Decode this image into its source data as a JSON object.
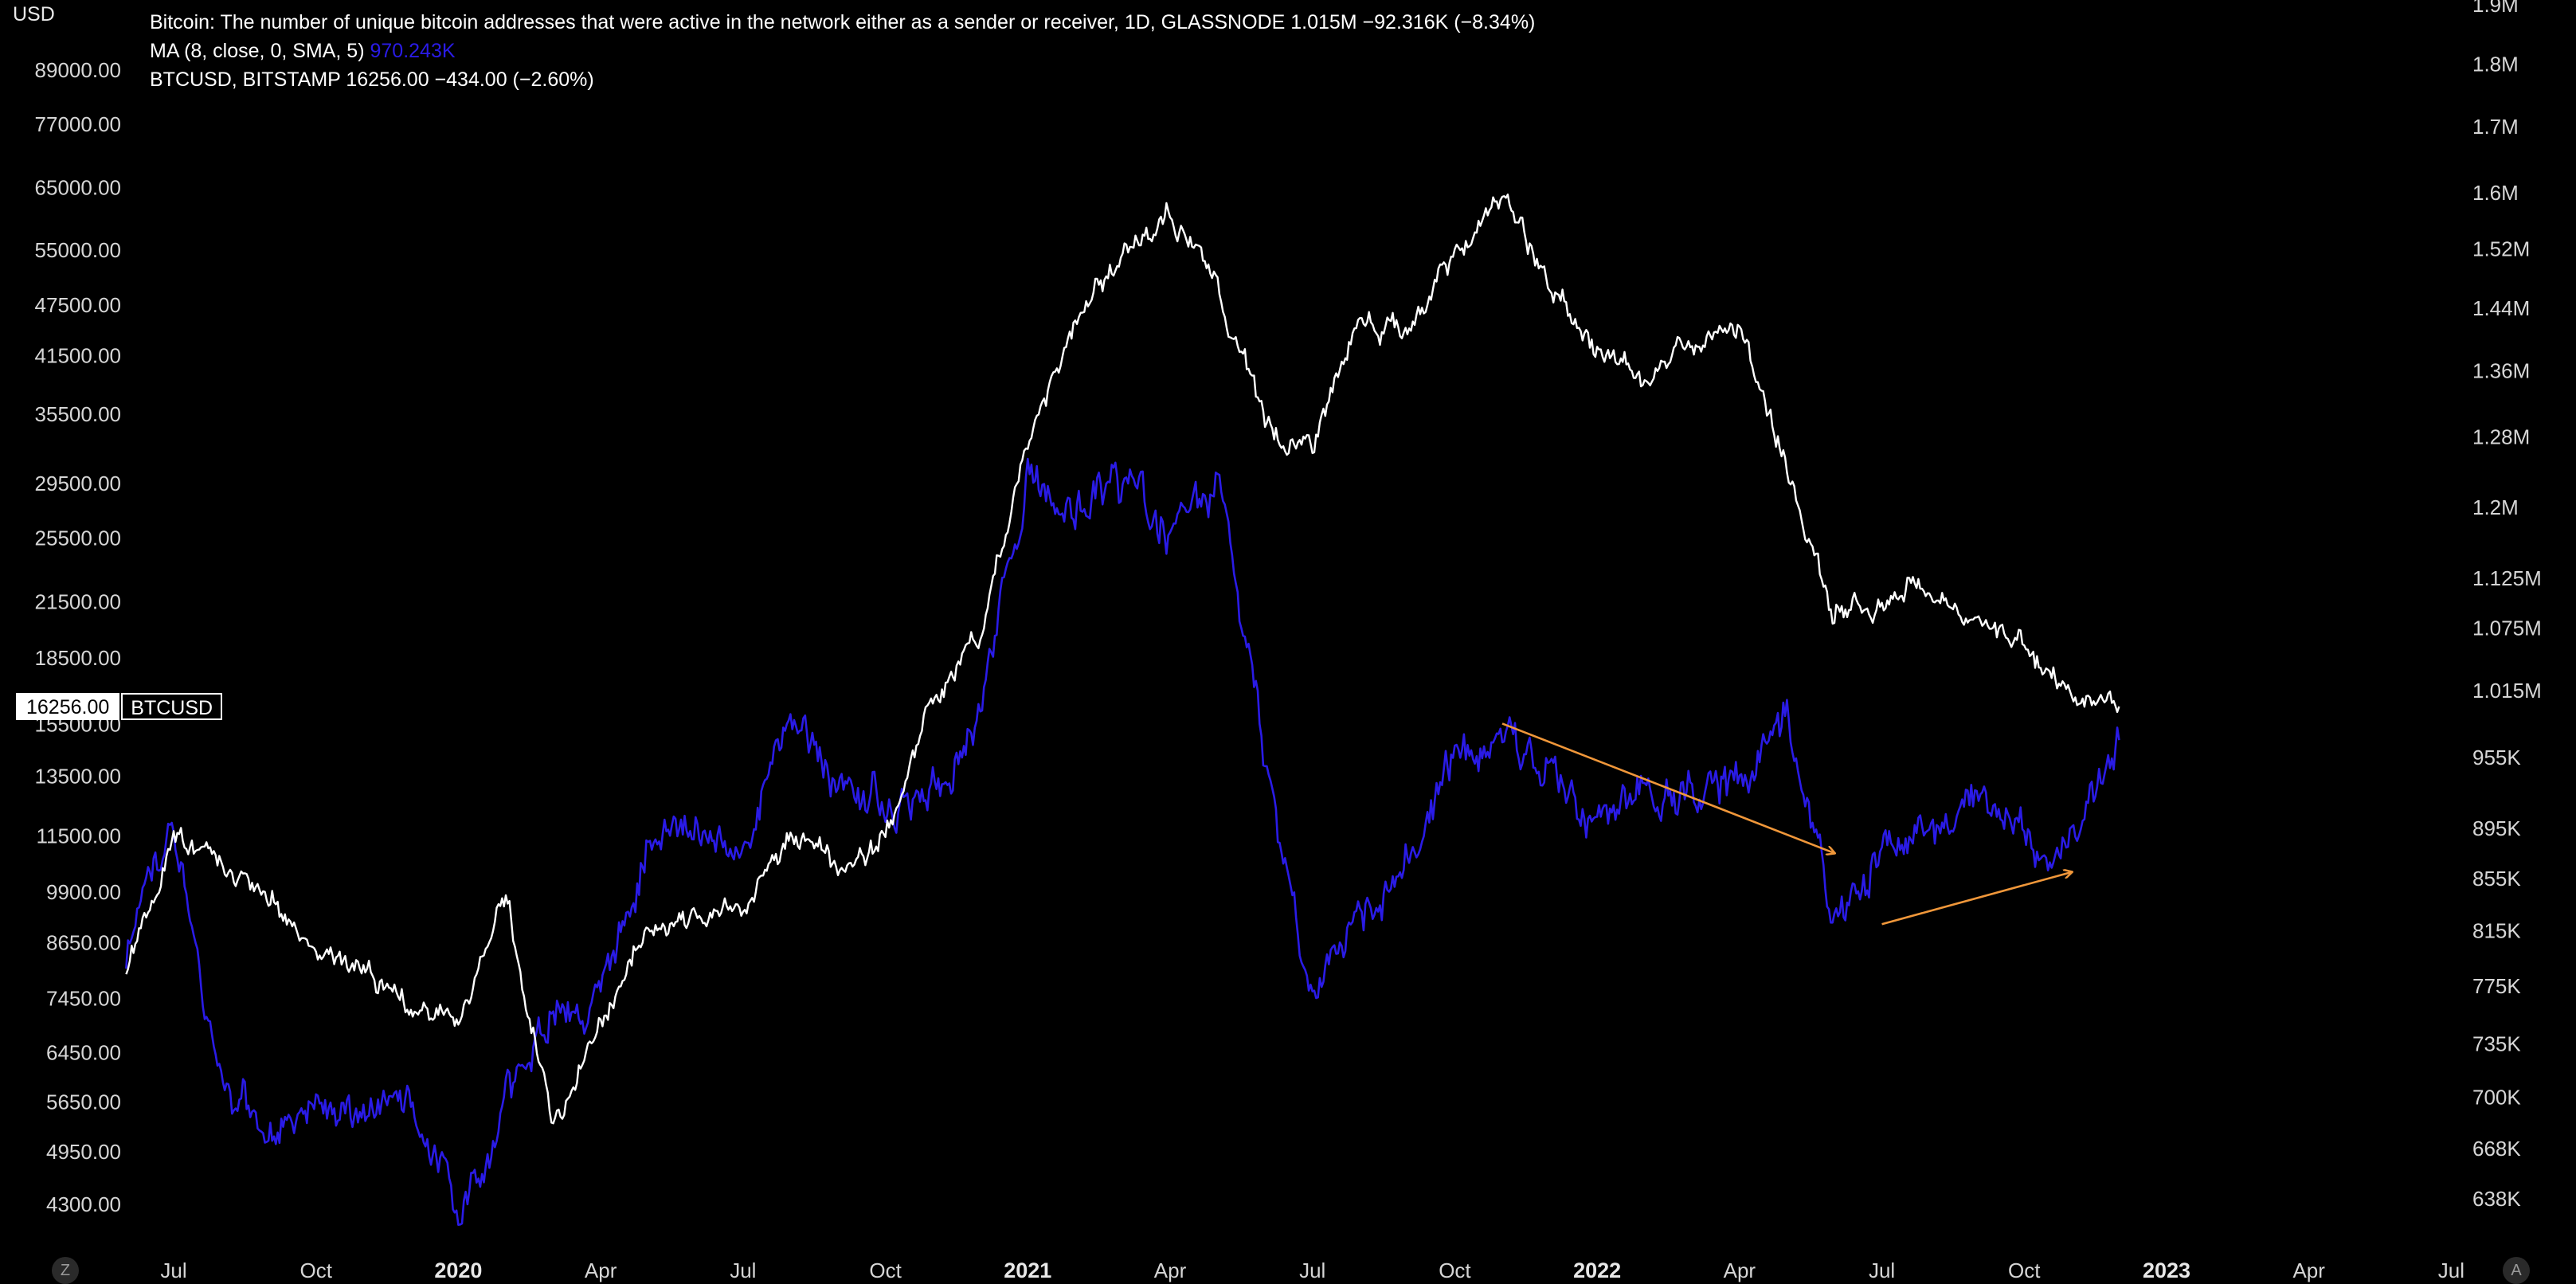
{
  "legend": {
    "line1": "Bitcoin: The number of unique bitcoin addresses that were active in the network either as a sender or receiver, 1D, GLASSNODE  1.015M  −92.316K (−8.34%)",
    "line2_label": "MA (8, close, 0, SMA, 5)",
    "line2_value": "970.243K",
    "line3": "BTCUSD, BITSTAMP  16256.00  −434.00 (−2.60%)"
  },
  "left_axis_unit": "USD",
  "price_tag": {
    "value": "16256.00",
    "symbol": "BTCUSD"
  },
  "corner_left": "Z",
  "corner_right": "A",
  "colors": {
    "price": "#ffffff",
    "addresses": "#2a1be6",
    "arrows": "#f0973a",
    "background": "#000000"
  },
  "chart_data": {
    "type": "line",
    "x_axis": {
      "labels": [
        "Jul",
        "Oct",
        "2020",
        "Apr",
        "Jul",
        "Oct",
        "2021",
        "Apr",
        "Jul",
        "Oct",
        "2022",
        "Apr",
        "Jul",
        "Oct",
        "2023",
        "Apr",
        "Jul"
      ],
      "bold": [
        "2020",
        "2021",
        "2022",
        "2023"
      ]
    },
    "left_axis": {
      "unit": "USD",
      "scale": "log",
      "ticks": [
        "89000.00",
        "77000.00",
        "65000.00",
        "55000.00",
        "47500.00",
        "41500.00",
        "35500.00",
        "29500.00",
        "25500.00",
        "21500.00",
        "18500.00",
        "15500.00",
        "13500.00",
        "11500.00",
        "9900.00",
        "8650.00",
        "7450.00",
        "6450.00",
        "5650.00",
        "4950.00",
        "4300.00"
      ]
    },
    "right_axis": {
      "scale": "log",
      "ticks": [
        "1.9M",
        "1.8M",
        "1.7M",
        "1.6M",
        "1.52M",
        "1.44M",
        "1.36M",
        "1.28M",
        "1.2M",
        "1.125M",
        "1.075M",
        "1.015M",
        "955K",
        "895K",
        "855K",
        "815K",
        "775K",
        "735K",
        "700K",
        "668K",
        "638K"
      ]
    },
    "series": [
      {
        "name": "BTCUSD, BITSTAMP",
        "axis": "left",
        "x": [
          "2019-06",
          "2019-07",
          "2019-08",
          "2019-09",
          "2019-10",
          "2019-11",
          "2019-12",
          "2020-01",
          "2020-02",
          "2020-03",
          "2020-04",
          "2020-05",
          "2020-06",
          "2020-07",
          "2020-08",
          "2020-09",
          "2020-10",
          "2020-11",
          "2020-12",
          "2021-01",
          "2021-02",
          "2021-03",
          "2021-04",
          "2021-05",
          "2021-06",
          "2021-07",
          "2021-08",
          "2021-09",
          "2021-10",
          "2021-11",
          "2021-12",
          "2022-01",
          "2022-02",
          "2022-03",
          "2022-04",
          "2022-05",
          "2022-06",
          "2022-07",
          "2022-08",
          "2022-09",
          "2022-10",
          "2022-11",
          "2022-12"
        ],
        "values": [
          8000,
          11500,
          10500,
          10000,
          8500,
          8100,
          7300,
          7000,
          9700,
          5200,
          7000,
          9000,
          9300,
          9500,
          11500,
          10700,
          11500,
          16500,
          19500,
          33000,
          45000,
          55000,
          60000,
          50000,
          34500,
          32000,
          46000,
          44000,
          55000,
          64000,
          50000,
          42000,
          39000,
          43000,
          45000,
          30500,
          21000,
          21500,
          22500,
          20000,
          19500,
          17000,
          16256
        ]
      },
      {
        "name": "MA (8, close, 0, SMA, 5)",
        "axis": "right",
        "x": [
          "2019-06",
          "2019-07",
          "2019-08",
          "2019-09",
          "2019-10",
          "2019-11",
          "2019-12",
          "2020-01",
          "2020-02",
          "2020-03",
          "2020-04",
          "2020-05",
          "2020-06",
          "2020-07",
          "2020-08",
          "2020-09",
          "2020-10",
          "2020-11",
          "2020-12",
          "2021-01",
          "2021-02",
          "2021-03",
          "2021-04",
          "2021-05",
          "2021-06",
          "2021-07",
          "2021-08",
          "2021-09",
          "2021-10",
          "2021-11",
          "2021-12",
          "2022-01",
          "2022-02",
          "2022-03",
          "2022-04",
          "2022-05",
          "2022-06",
          "2022-07",
          "2022-08",
          "2022-09",
          "2022-10",
          "2022-11",
          "2022-12"
        ],
        "values": [
          800000,
          900000,
          700000,
          680000,
          690000,
          685000,
          700000,
          620000,
          700000,
          760000,
          760000,
          880000,
          890000,
          880000,
          990000,
          930000,
          920000,
          920000,
          1000000,
          1230000,
          1200000,
          1230000,
          1180000,
          1230000,
          950000,
          760000,
          830000,
          870000,
          960000,
          970000,
          940000,
          900000,
          920000,
          920000,
          940000,
          990000,
          830000,
          880000,
          890000,
          920000,
          880000,
          880000,
          970243
        ]
      }
    ],
    "annotations": [
      {
        "type": "arrow",
        "from": {
          "x": "2021-11",
          "y": 985000
        },
        "to": {
          "x": "2022-06",
          "y": 875000
        }
      },
      {
        "type": "arrow",
        "from": {
          "x": "2022-07",
          "y": 820000
        },
        "to": {
          "x": "2022-11",
          "y": 860000
        }
      }
    ]
  }
}
